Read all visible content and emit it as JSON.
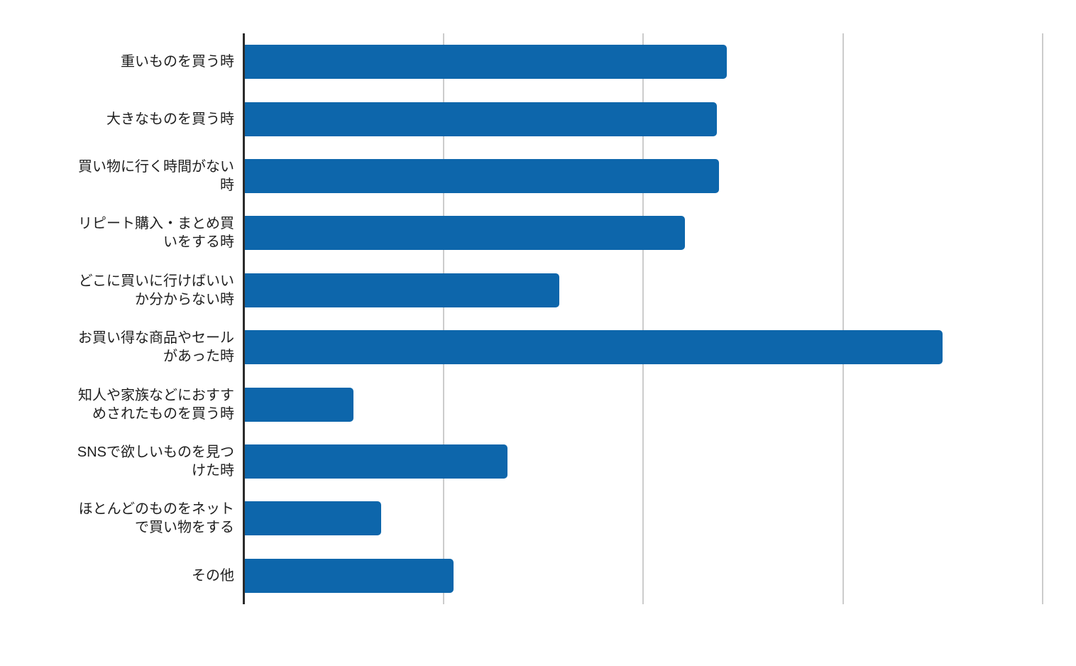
{
  "chart_data": {
    "type": "bar",
    "orientation": "horizontal",
    "title": "",
    "xlabel": "",
    "ylabel": "",
    "legend_position": "none",
    "grid": true,
    "xlim": [
      0,
      40
    ],
    "gridline_interval": 10,
    "bar_color": "#0d66ab",
    "axis_color": "#2b2b2b",
    "gridline_color": "#cccccc",
    "label_color": "#1f1f1f",
    "categories": [
      "重いものを買う時",
      "大きなものを買う時",
      "買い物に行く時間がない\n時",
      "リピート購入・まとめ買\nいをする時",
      "どこに買いに行けばいい\nか分からない時",
      "お買い得な商品やセール\nがあった時",
      "知人や家族などにおすす\nめされたものを買う時",
      "SNSで欲しいものを見つ\nけた時",
      "ほとんどのものをネット\nで買い物をする",
      "その他"
    ],
    "values": [
      24.2,
      23.7,
      23.8,
      22.1,
      15.8,
      35.0,
      5.5,
      13.2,
      6.9,
      10.5
    ]
  }
}
